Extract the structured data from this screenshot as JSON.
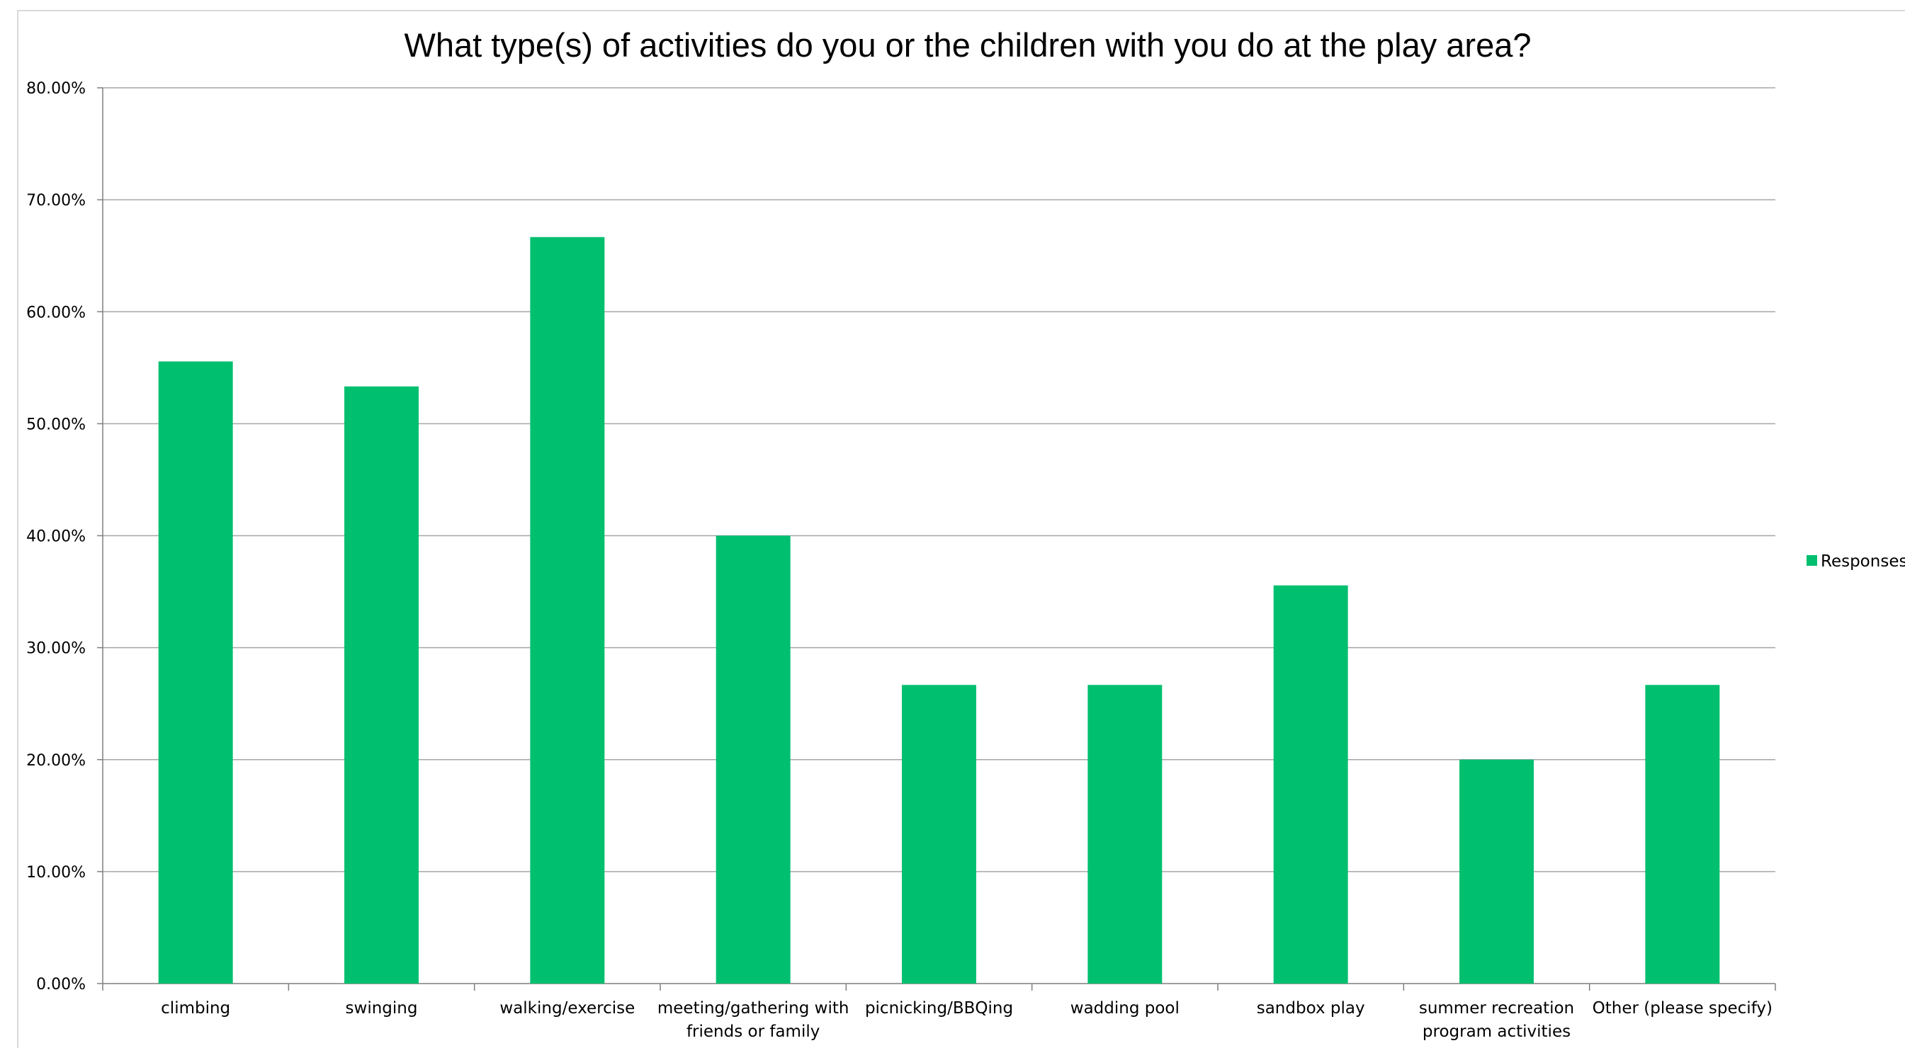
{
  "chart_data": {
    "type": "bar",
    "title": "What type(s) of activities do you or the children with you do at the play area?",
    "xlabel": "",
    "ylabel": "",
    "categories": [
      [
        "climbing"
      ],
      [
        "swinging"
      ],
      [
        "walking/exercise"
      ],
      [
        "meeting/gathering with",
        "friends or family"
      ],
      [
        "picnicking/BBQing"
      ],
      [
        "wadding pool"
      ],
      [
        "sandbox play"
      ],
      [
        "summer recreation",
        "program activities"
      ],
      [
        "Other (please specify)"
      ]
    ],
    "series": [
      {
        "name": "Responses",
        "color": "#00BF6F",
        "values": [
          55.56,
          53.33,
          66.67,
          40.0,
          26.67,
          26.67,
          35.56,
          20.0,
          26.67
        ]
      }
    ],
    "ylim": [
      0,
      80
    ],
    "ytick_step": 10,
    "ytick_labels": [
      "0.00%",
      "10.00%",
      "20.00%",
      "30.00%",
      "40.00%",
      "50.00%",
      "60.00%",
      "70.00%",
      "80.00%"
    ],
    "grid": true,
    "grid_color": "#a6a6a6",
    "legend_position": "right"
  }
}
